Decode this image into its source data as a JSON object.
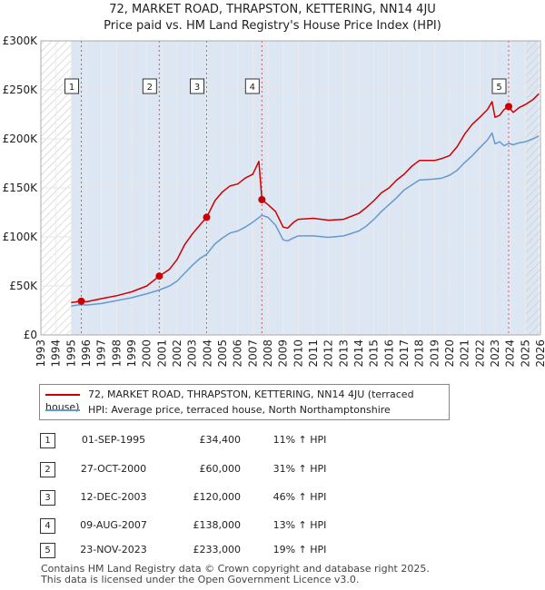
{
  "title": "72, MARKET ROAD, THRAPSTON, KETTERING, NN14 4JU",
  "subtitle": "Price paid vs. HM Land Registry's House Price Index (HPI)",
  "legend": {
    "property": "72, MARKET ROAD, THRAPSTON, KETTERING, NN14 4JU (terraced house)",
    "hpi": "HPI: Average price, terraced house, North Northamptonshire"
  },
  "colors": {
    "property": "#cc0000",
    "hpi": "#6699cc",
    "band": "#dde6f3",
    "hatch": "#c0c0c0"
  },
  "chart_data": {
    "type": "line",
    "title": "72, MARKET ROAD, THRAPSTON, KETTERING, NN14 4JU",
    "xlabel": "",
    "ylabel": "",
    "xlim": [
      1993,
      2026
    ],
    "ylim": [
      0,
      300000
    ],
    "y_ticks": [
      0,
      50000,
      100000,
      150000,
      200000,
      250000,
      300000
    ],
    "y_tick_labels": [
      "£0",
      "£50K",
      "£100K",
      "£150K",
      "£200K",
      "£250K",
      "£300K"
    ],
    "x_ticks": [
      1993,
      1994,
      1995,
      1996,
      1997,
      1998,
      1999,
      2000,
      2001,
      2002,
      2003,
      2004,
      2005,
      2006,
      2007,
      2008,
      2009,
      2010,
      2011,
      2012,
      2013,
      2014,
      2015,
      2016,
      2017,
      2018,
      2019,
      2020,
      2021,
      2022,
      2023,
      2024,
      2025,
      2026
    ],
    "data_range": [
      1995.0,
      2025.9
    ],
    "forecast_start": 2025.0,
    "series": [
      {
        "name": "72, MARKET ROAD, THRAPSTON, KETTERING, NN14 4JU (terraced house)",
        "x": [
          1995.0,
          1995.67,
          1996.0,
          1997.0,
          1998.0,
          1999.0,
          2000.0,
          2000.82,
          2001.5,
          2002.0,
          2002.5,
          2003.0,
          2003.5,
          2003.95,
          2004.5,
          2005.0,
          2005.5,
          2006.0,
          2006.5,
          2007.0,
          2007.4,
          2007.55,
          2007.6,
          2008.0,
          2008.5,
          2009.0,
          2009.3,
          2009.7,
          2010.0,
          2011.0,
          2012.0,
          2013.0,
          2014.0,
          2014.5,
          2015.0,
          2015.5,
          2016.0,
          2016.5,
          2017.0,
          2017.5,
          2018.0,
          2019.0,
          2019.5,
          2020.0,
          2020.5,
          2021.0,
          2021.5,
          2022.0,
          2022.5,
          2022.8,
          2023.0,
          2023.3,
          2023.6,
          2023.9,
          2024.2,
          2024.6,
          2025.0,
          2025.5,
          2025.9
        ],
        "y": [
          33000,
          34400,
          33800,
          37000,
          40000,
          44000,
          50000,
          60000,
          67000,
          77000,
          92000,
          103000,
          112000,
          120000,
          137000,
          146000,
          152000,
          154000,
          160000,
          164000,
          177000,
          148000,
          138000,
          133000,
          126000,
          110000,
          109000,
          115000,
          118000,
          119000,
          117000,
          118000,
          124000,
          130000,
          137000,
          145000,
          150000,
          158000,
          164000,
          172000,
          178000,
          178000,
          180000,
          183000,
          192000,
          205000,
          215000,
          222000,
          230000,
          238000,
          222000,
          224000,
          230000,
          233000,
          227000,
          232000,
          235000,
          240000,
          246000
        ]
      },
      {
        "name": "HPI: Average price, terraced house, North Northamptonshire",
        "x": [
          1995.0,
          1995.67,
          1996.0,
          1997.0,
          1998.0,
          1999.0,
          2000.0,
          2000.82,
          2001.5,
          2002.0,
          2002.5,
          2003.0,
          2003.5,
          2003.95,
          2004.5,
          2005.0,
          2005.5,
          2006.0,
          2006.5,
          2007.0,
          2007.6,
          2008.0,
          2008.5,
          2009.0,
          2009.3,
          2009.7,
          2010.0,
          2011.0,
          2012.0,
          2013.0,
          2014.0,
          2014.5,
          2015.0,
          2015.5,
          2016.0,
          2016.5,
          2017.0,
          2017.5,
          2018.0,
          2019.0,
          2019.5,
          2020.0,
          2020.5,
          2021.0,
          2021.5,
          2022.0,
          2022.5,
          2022.8,
          2023.0,
          2023.3,
          2023.6,
          2023.9,
          2024.2,
          2024.6,
          2025.0,
          2025.5,
          2025.9
        ],
        "y": [
          29500,
          31000,
          30500,
          32000,
          35000,
          38000,
          42000,
          45800,
          50000,
          55000,
          63000,
          71000,
          78000,
          82200,
          93000,
          99000,
          104000,
          106000,
          110000,
          115000,
          122000,
          120000,
          112000,
          97000,
          96000,
          99000,
          101000,
          101000,
          99500,
          101000,
          106000,
          111000,
          118000,
          126000,
          133000,
          140000,
          148000,
          153000,
          158000,
          159000,
          160000,
          163000,
          168000,
          176000,
          183000,
          191000,
          199000,
          206000,
          195000,
          197000,
          193000,
          195500,
          194000,
          196000,
          197000,
          200000,
          203000
        ]
      }
    ],
    "sales": [
      {
        "num": "1",
        "x": 1995.67,
        "y": 34400
      },
      {
        "num": "2",
        "x": 2000.82,
        "y": 60000
      },
      {
        "num": "3",
        "x": 2003.95,
        "y": 120000
      },
      {
        "num": "4",
        "x": 2007.6,
        "y": 138000
      },
      {
        "num": "5",
        "x": 2023.9,
        "y": 233000
      }
    ]
  },
  "transactions": [
    {
      "num": "1",
      "date": "01-SEP-1995",
      "price": "£34,400",
      "hpi": "11% ↑ HPI"
    },
    {
      "num": "2",
      "date": "27-OCT-2000",
      "price": "£60,000",
      "hpi": "31% ↑ HPI"
    },
    {
      "num": "3",
      "date": "12-DEC-2003",
      "price": "£120,000",
      "hpi": "46% ↑ HPI"
    },
    {
      "num": "4",
      "date": "09-AUG-2007",
      "price": "£138,000",
      "hpi": "13% ↑ HPI"
    },
    {
      "num": "5",
      "date": "23-NOV-2023",
      "price": "£233,000",
      "hpi": "19% ↑ HPI"
    }
  ],
  "footer": {
    "line1": "Contains HM Land Registry data © Crown copyright and database right 2025.",
    "line2": "This data is licensed under the Open Government Licence v3.0."
  }
}
